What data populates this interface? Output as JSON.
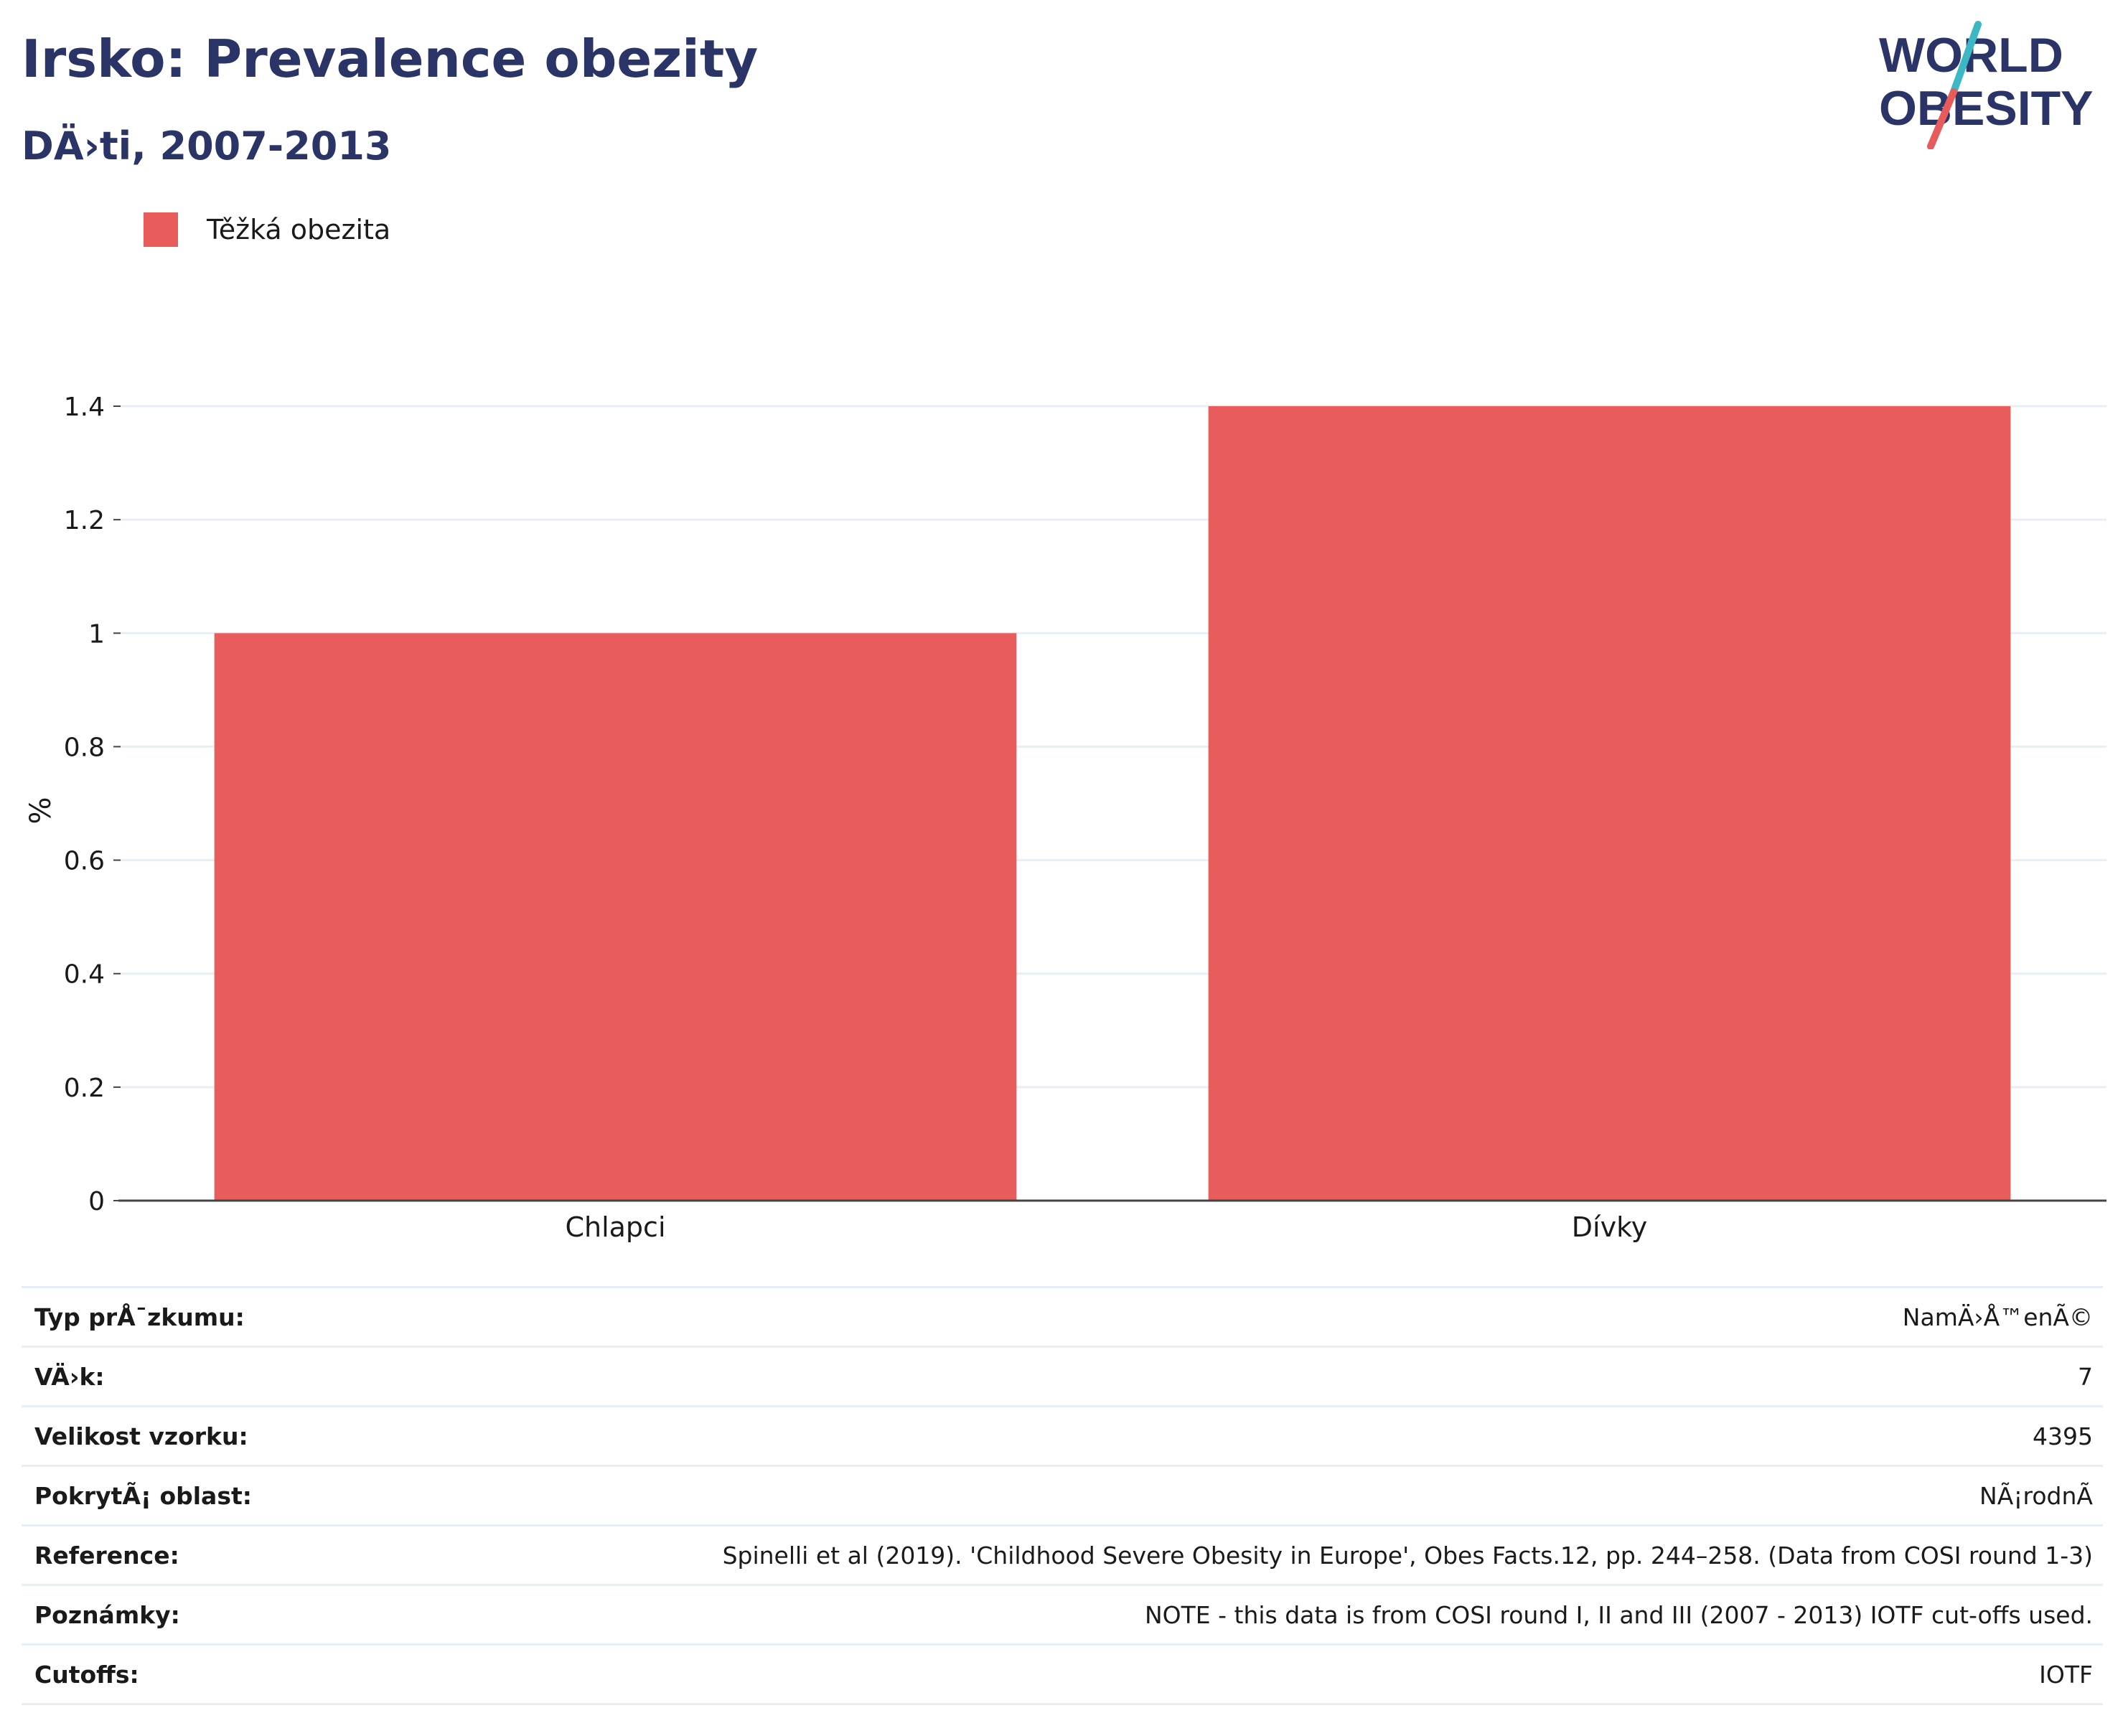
{
  "header": {
    "title": "Irsko: Prevalence obezity",
    "subtitle": "DÄ›ti, 2007-2013"
  },
  "logo": {
    "line1": "WORLD",
    "line2": "OBESITY",
    "text_color": "#2b3467",
    "slash_color_top": "#3bb8c4",
    "slash_color_bottom": "#e85b5b"
  },
  "legend": {
    "label": "Těžká obezita",
    "color": "#e95c5c"
  },
  "chart_data": {
    "type": "bar",
    "categories": [
      "Chlapci",
      "Dívky"
    ],
    "series": [
      {
        "name": "Těžká obezita",
        "values": [
          1.0,
          1.4
        ],
        "color": "#e95c5c"
      }
    ],
    "ylabel": "%",
    "xlabel": "",
    "ylim": [
      0,
      1.4
    ],
    "yticks": [
      0,
      0.2,
      0.4,
      0.6,
      0.8,
      1,
      1.2,
      1.4
    ],
    "ytick_labels": [
      "0",
      "0.2",
      "0.4",
      "0.6",
      "0.8",
      "1",
      "1.2",
      "1.4"
    ],
    "grid": true,
    "legend_position": "top-left"
  },
  "info": [
    {
      "key": "Typ prÅ¯zkumu:",
      "value": "NamÄ›Å™enÃ©"
    },
    {
      "key": "VÄ›k:",
      "value": "7"
    },
    {
      "key": "Velikost vzorku:",
      "value": "4395"
    },
    {
      "key": "PokrytÃ¡ oblast:",
      "value": "NÃ¡rodnÃ"
    },
    {
      "key": "Reference:",
      "value": "Spinelli et al (2019). 'Childhood Severe Obesity in Europe', Obes Facts.12, pp. 244–258. (Data from COSI round 1-3)"
    },
    {
      "key": "Poznámky:",
      "value": "NOTE - this data is from COSI round I, II and III (2007 - 2013) IOTF cut-offs used."
    },
    {
      "key": "Cutoffs:",
      "value": "IOTF"
    }
  ]
}
